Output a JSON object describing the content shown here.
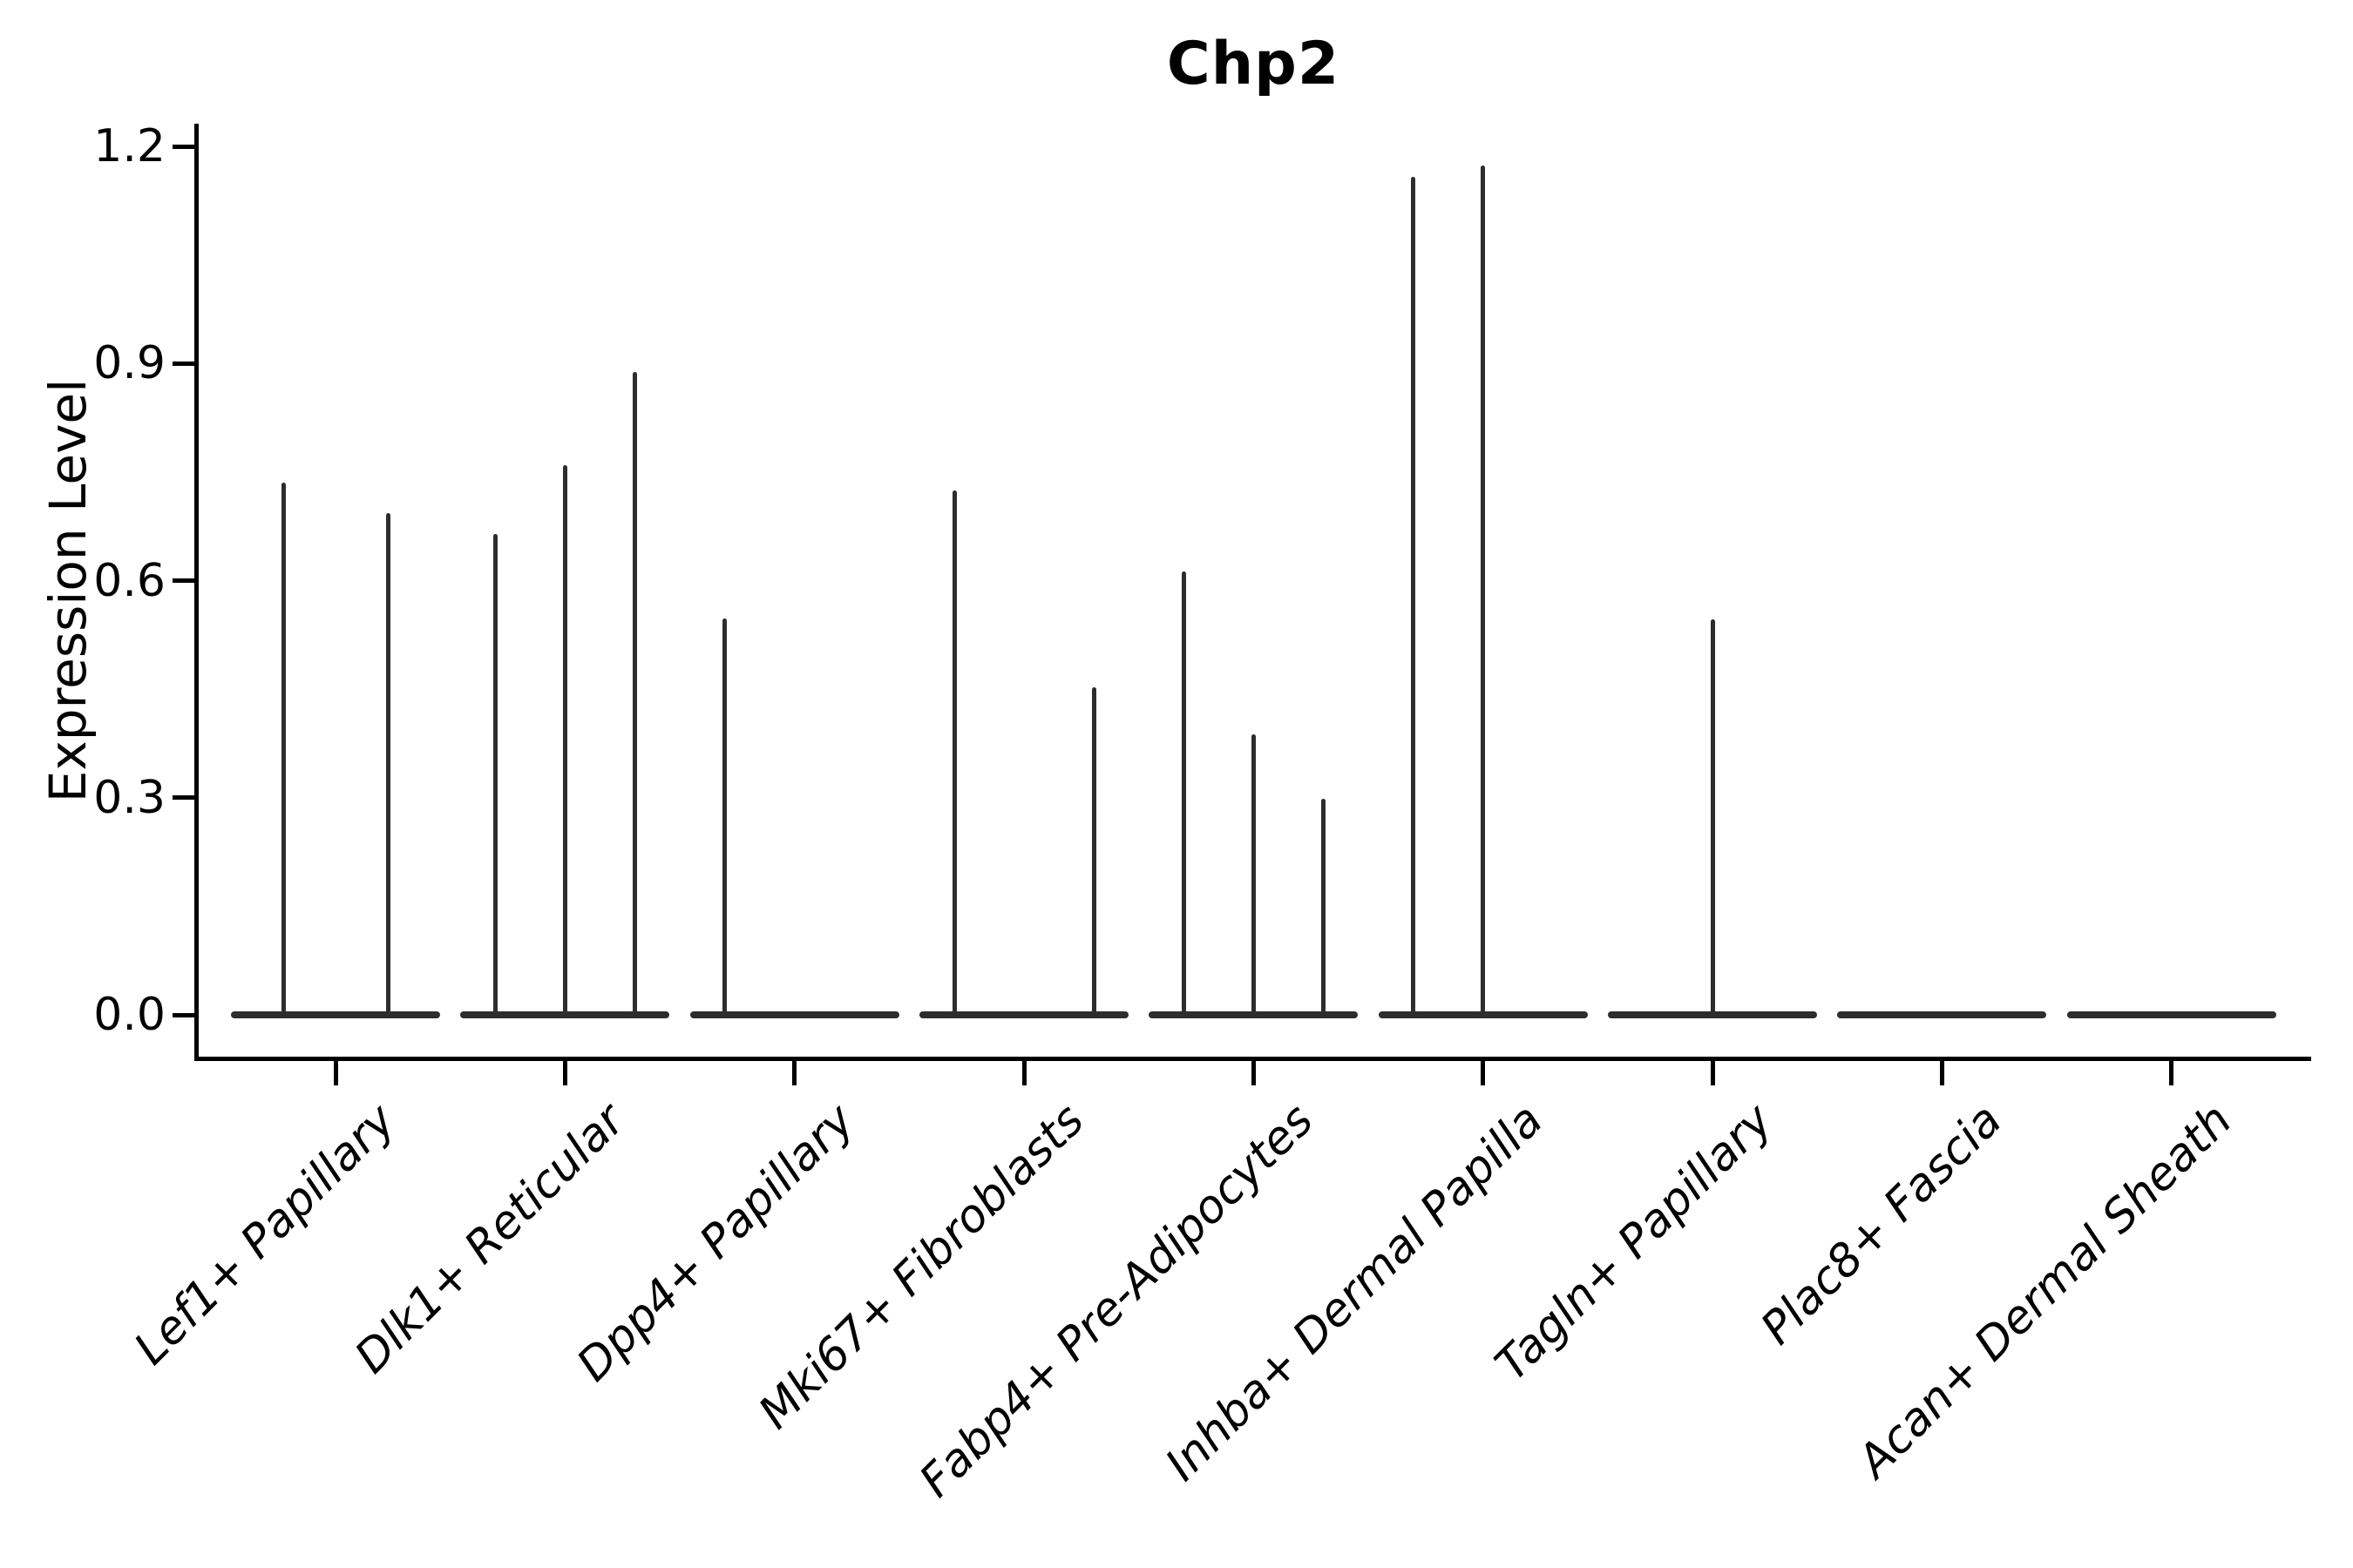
{
  "title": "Chp2",
  "y_axis": {
    "label": "Expression Level",
    "tick_labels": [
      "0.0",
      "0.3",
      "0.6",
      "0.9",
      "1.2"
    ]
  },
  "colors": {
    "violin": "#2d2d2d",
    "axis": "#000000",
    "background": "#ffffff"
  },
  "chart_data": {
    "type": "violin",
    "title": "Chp2",
    "xlabel": "",
    "ylabel": "Expression Level",
    "ylim": [
      0,
      1.26
    ],
    "yticks": [
      0.0,
      0.3,
      0.6,
      0.9,
      1.2
    ],
    "ytick_labels": [
      "0.0",
      "0.3",
      "0.6",
      "0.9",
      "1.2"
    ],
    "grid": false,
    "legend": "none",
    "description": "Violin plot of Chp2 expression per cell type; most cells are at 0 so each violin collapses to a flat base with thin density spikes. Each category contains evenly spaced sub-violins; sub_violin_peaks lists the maximum expression reached by each sub-violin slot (0 = flat, no spike).",
    "categories": [
      {
        "label": "Lef1+ Papillary",
        "sub_violin_peaks": [
          0.735,
          0.693
        ]
      },
      {
        "label": "Dlk1+ Reticular",
        "sub_violin_peaks": [
          0.665,
          0.76,
          0.888
        ]
      },
      {
        "label": "Dpp4+ Papillary",
        "sub_violin_peaks": [
          0.548,
          0,
          0
        ]
      },
      {
        "label": "Mki67+ Fibroblasts",
        "sub_violin_peaks": [
          0.725,
          0,
          0.453
        ]
      },
      {
        "label": "Fabp4+ Pre-Adipocytes",
        "sub_violin_peaks": [
          0.613,
          0.388,
          0.299
        ]
      },
      {
        "label": "Inhba+ Dermal Papilla",
        "sub_violin_peaks": [
          1.158,
          1.174,
          0
        ]
      },
      {
        "label": "Tagln+ Papillary",
        "sub_violin_peaks": [
          0,
          0.547,
          0
        ]
      },
      {
        "label": "Plac8+ Fascia",
        "sub_violin_peaks": [
          0,
          0,
          0
        ]
      },
      {
        "label": "Acan+ Dermal Sheath",
        "sub_violin_peaks": [
          0,
          0,
          0
        ]
      }
    ]
  }
}
